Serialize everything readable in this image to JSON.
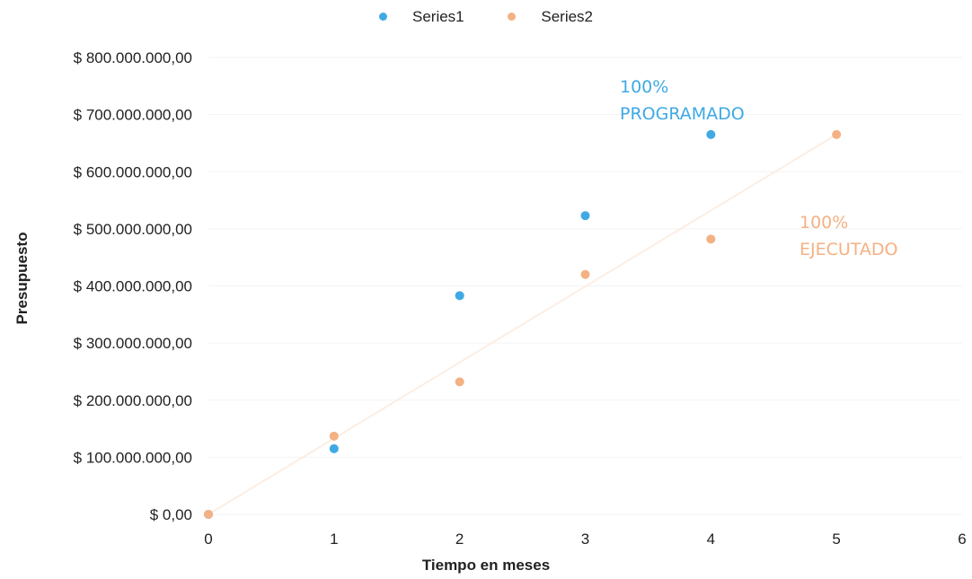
{
  "chart_data": {
    "type": "scatter",
    "title": "",
    "xlabel": "Tiempo en meses",
    "ylabel": "Presupuesto",
    "xlim": [
      0,
      6
    ],
    "ylim": [
      0,
      800000000
    ],
    "xticks": [
      "0",
      "1",
      "2",
      "3",
      "4",
      "5",
      "6"
    ],
    "yticks": [
      "$ 0,00",
      "$ 100.000.000,00",
      "$ 200.000.000,00",
      "$ 300.000.000,00",
      "$ 400.000.000,00",
      "$ 500.000.000,00",
      "$ 600.000.000,00",
      "$ 700.000.000,00",
      "$ 800.000.000,00"
    ],
    "grid": true,
    "legend_position": "top",
    "series": [
      {
        "name": "Series1",
        "color": "#3fa9e4",
        "x": [
          0,
          1,
          2,
          3,
          4
        ],
        "y": [
          0,
          115000000,
          383000000,
          523000000,
          665000000
        ]
      },
      {
        "name": "Series2",
        "color": "#f4b183",
        "x": [
          0,
          1,
          2,
          3,
          4,
          5
        ],
        "y": [
          0,
          137000000,
          232000000,
          420000000,
          482000000,
          665000000
        ]
      }
    ],
    "annotations": [
      {
        "line1": "100%",
        "line2": "PROGRAMADO",
        "color": "#3fa9e4"
      },
      {
        "line1": "100%",
        "line2": "EJECUTADO",
        "color": "#f4b183"
      }
    ]
  }
}
